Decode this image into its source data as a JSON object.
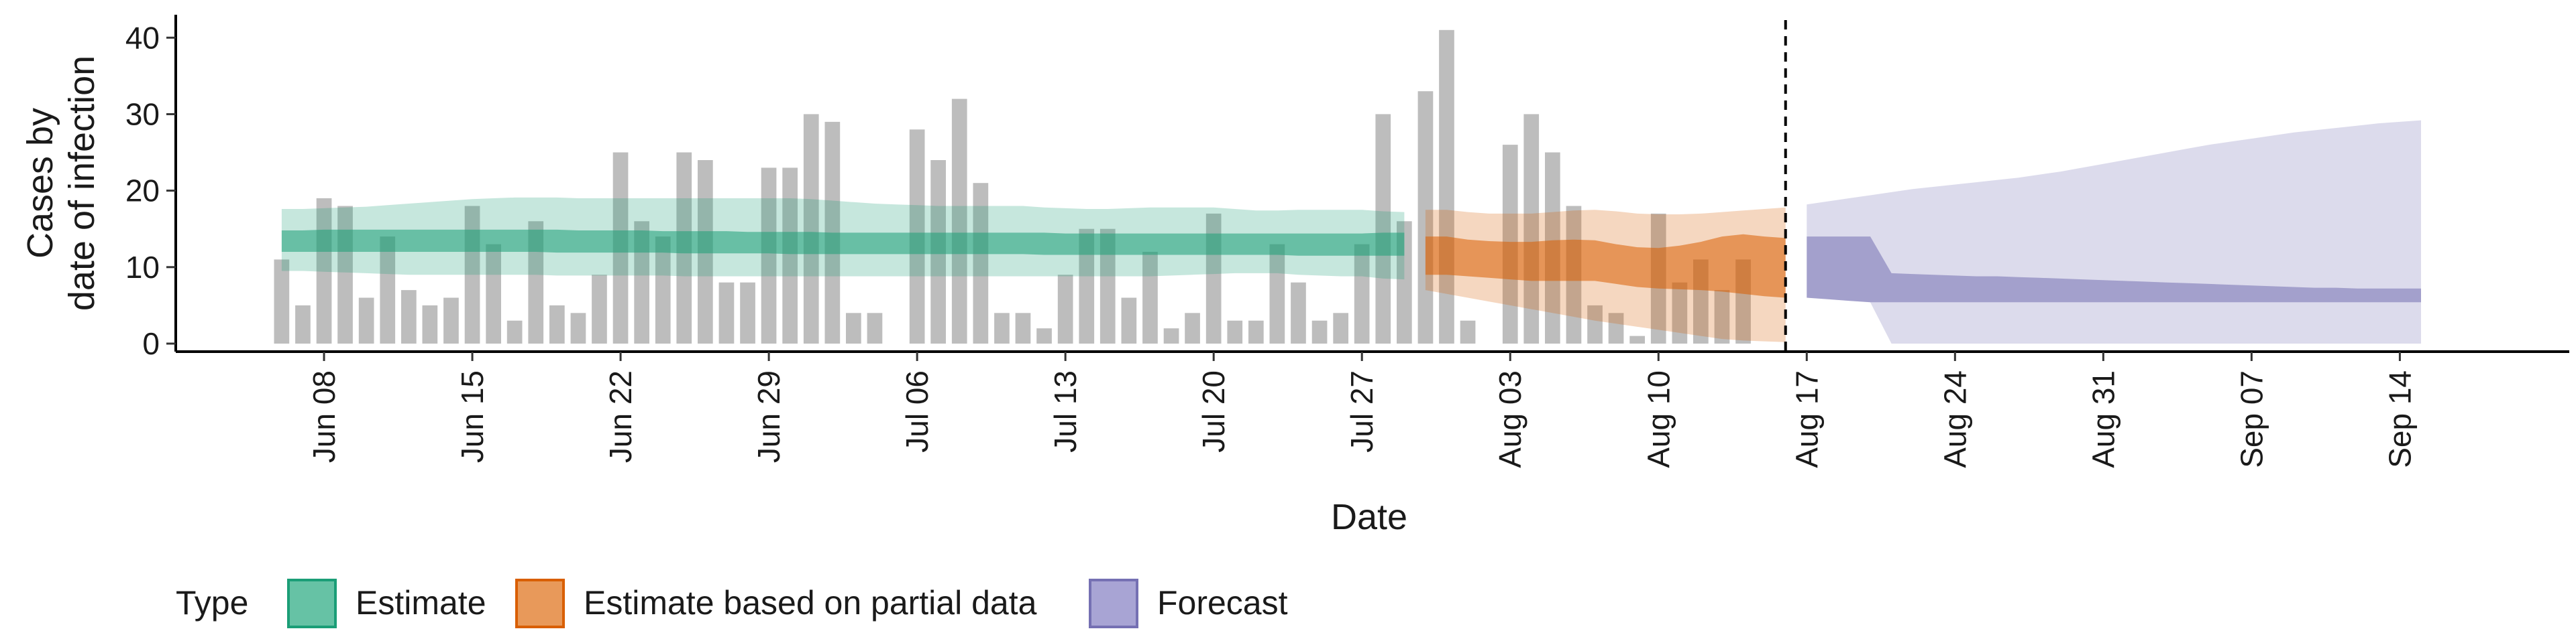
{
  "chart_data": {
    "type": "bar",
    "xlabel": "Date",
    "ylabel_lines": [
      "Cases by",
      "date of infection"
    ],
    "ylim": [
      0,
      43
    ],
    "yticks": [
      0,
      10,
      20,
      30,
      40
    ],
    "xlim": [
      "2020-06-01",
      "2020-09-22"
    ],
    "xticks": [
      {
        "date": "2020-06-08",
        "label": "Jun 08"
      },
      {
        "date": "2020-06-15",
        "label": "Jun 15"
      },
      {
        "date": "2020-06-22",
        "label": "Jun 22"
      },
      {
        "date": "2020-06-29",
        "label": "Jun 29"
      },
      {
        "date": "2020-07-06",
        "label": "Jul 06"
      },
      {
        "date": "2020-07-13",
        "label": "Jul 13"
      },
      {
        "date": "2020-07-20",
        "label": "Jul 20"
      },
      {
        "date": "2020-07-27",
        "label": "Jul 27"
      },
      {
        "date": "2020-08-03",
        "label": "Aug 03"
      },
      {
        "date": "2020-08-10",
        "label": "Aug 10"
      },
      {
        "date": "2020-08-17",
        "label": "Aug 17"
      },
      {
        "date": "2020-08-24",
        "label": "Aug 24"
      },
      {
        "date": "2020-08-31",
        "label": "Aug 31"
      },
      {
        "date": "2020-09-07",
        "label": "Sep 07"
      },
      {
        "date": "2020-09-14",
        "label": "Sep 14"
      }
    ],
    "vline_date": "2020-08-16",
    "bars": {
      "start_date": "2020-06-06",
      "color": "#bdbdbd",
      "values": [
        11,
        5,
        19,
        18,
        6,
        14,
        7,
        5,
        6,
        18,
        13,
        3,
        16,
        5,
        4,
        9,
        25,
        16,
        14,
        25,
        24,
        8,
        8,
        23,
        23,
        30,
        29,
        4,
        4,
        0,
        28,
        24,
        32,
        21,
        4,
        4,
        2,
        9,
        15,
        15,
        6,
        12,
        2,
        4,
        17,
        3,
        3,
        13,
        8,
        3,
        4,
        13,
        30,
        16,
        33,
        41,
        3,
        0,
        26,
        30,
        25,
        18,
        5,
        4,
        1,
        17,
        8,
        11,
        7,
        11
      ]
    },
    "legend": {
      "title": "Type",
      "items": [
        {
          "label": "Estimate",
          "fill": "#66c2a5",
          "stroke": "#1b9e77"
        },
        {
          "label": "Estimate based on partial data",
          "fill": "#e8995a",
          "stroke": "#d95f02"
        },
        {
          "label": "Forecast",
          "fill": "#a8a4d4",
          "stroke": "#7570b3"
        }
      ]
    },
    "series": [
      {
        "name": "Estimate",
        "color": "#1b9e77",
        "start_date": "2020-06-06",
        "outer_lower": [
          9.5,
          9.5,
          9.4,
          9.3,
          9.2,
          9.1,
          9.0,
          9.0,
          9.0,
          9.0,
          9.0,
          9.0,
          9.0,
          8.9,
          8.9,
          8.9,
          8.9,
          8.9,
          8.9,
          8.8,
          8.8,
          8.8,
          8.8,
          8.8,
          8.8,
          8.8,
          8.8,
          8.8,
          8.8,
          8.8,
          8.8,
          8.8,
          8.8,
          8.8,
          8.8,
          8.8,
          8.8,
          8.8,
          8.8,
          8.8,
          8.8,
          8.8,
          8.9,
          9.0,
          9.1,
          9.2,
          9.2,
          9.2,
          9.0,
          8.9,
          8.8,
          8.8,
          8.5,
          8.4
        ],
        "inner_lower": [
          12.0,
          12.0,
          12.0,
          12.0,
          12.0,
          12.0,
          12.0,
          12.0,
          12.0,
          12.0,
          12.0,
          12.0,
          12.0,
          11.9,
          11.9,
          11.9,
          11.9,
          11.9,
          11.9,
          11.8,
          11.8,
          11.8,
          11.8,
          11.8,
          11.7,
          11.7,
          11.7,
          11.7,
          11.7,
          11.7,
          11.7,
          11.7,
          11.7,
          11.7,
          11.7,
          11.7,
          11.6,
          11.6,
          11.6,
          11.6,
          11.6,
          11.6,
          11.6,
          11.6,
          11.6,
          11.6,
          11.6,
          11.6,
          11.5,
          11.5,
          11.5,
          11.5,
          11.5,
          11.5
        ],
        "inner_upper": [
          14.8,
          14.8,
          14.9,
          14.9,
          14.9,
          14.9,
          14.9,
          14.9,
          14.9,
          14.9,
          14.9,
          14.9,
          14.9,
          14.9,
          14.8,
          14.8,
          14.8,
          14.8,
          14.7,
          14.7,
          14.7,
          14.7,
          14.6,
          14.6,
          14.6,
          14.6,
          14.5,
          14.5,
          14.5,
          14.5,
          14.5,
          14.5,
          14.5,
          14.5,
          14.5,
          14.5,
          14.5,
          14.4,
          14.4,
          14.4,
          14.4,
          14.4,
          14.4,
          14.4,
          14.4,
          14.4,
          14.4,
          14.4,
          14.4,
          14.4,
          14.4,
          14.4,
          14.5,
          14.5
        ],
        "outer_upper": [
          17.6,
          17.6,
          17.7,
          17.8,
          17.9,
          18.1,
          18.3,
          18.5,
          18.7,
          18.9,
          19.0,
          19.1,
          19.1,
          19.1,
          19.0,
          19.0,
          19.0,
          19.0,
          19.0,
          19.0,
          19.0,
          19.0,
          19.0,
          19.0,
          19.0,
          18.9,
          18.7,
          18.5,
          18.3,
          18.2,
          18.1,
          18.0,
          18.0,
          18.0,
          18.0,
          18.0,
          17.8,
          17.7,
          17.6,
          17.6,
          17.7,
          17.8,
          17.8,
          17.8,
          17.8,
          17.6,
          17.4,
          17.4,
          17.5,
          17.5,
          17.5,
          17.5,
          17.3,
          17.2
        ]
      },
      {
        "name": "Estimate based on partial data",
        "color": "#d95f02",
        "start_date": "2020-07-30",
        "outer_lower": [
          7.0,
          6.5,
          6.0,
          5.5,
          5.0,
          4.5,
          4.0,
          3.5,
          3.0,
          2.6,
          2.2,
          1.8,
          1.4,
          1.0,
          0.6,
          0.4,
          0.3,
          0.2
        ],
        "inner_lower": [
          9.0,
          9.0,
          8.8,
          8.6,
          8.4,
          8.2,
          8.2,
          8.2,
          8.2,
          7.8,
          7.4,
          7.2,
          7.1,
          7.0,
          6.8,
          6.5,
          6.2,
          6.0
        ],
        "inner_upper": [
          14.0,
          14.0,
          13.6,
          13.4,
          13.3,
          13.3,
          13.5,
          13.6,
          13.5,
          13.0,
          12.6,
          12.5,
          12.8,
          13.3,
          14.0,
          14.3,
          14.0,
          13.8
        ],
        "outer_upper": [
          17.5,
          17.5,
          17.2,
          17.0,
          17.0,
          17.0,
          17.2,
          17.4,
          17.5,
          17.3,
          17.0,
          16.9,
          16.9,
          17.0,
          17.2,
          17.4,
          17.6,
          17.8
        ]
      },
      {
        "name": "Forecast",
        "color": "#7570b3",
        "start_date": "2020-08-17",
        "outer_lower": [
          6.0,
          5.8,
          5.6,
          5.4,
          0,
          0,
          0,
          0,
          0,
          0,
          0,
          0,
          0,
          0,
          0,
          0,
          0,
          0,
          0,
          0,
          0,
          0,
          0,
          0,
          0,
          0,
          0,
          0,
          0,
          0
        ],
        "inner_lower": [
          6.0,
          5.8,
          5.6,
          5.4,
          5.4,
          5.4,
          5.4,
          5.4,
          5.4,
          5.4,
          5.4,
          5.4,
          5.4,
          5.4,
          5.4,
          5.4,
          5.4,
          5.4,
          5.4,
          5.4,
          5.4,
          5.4,
          5.4,
          5.4,
          5.4,
          5.4,
          5.4,
          5.4,
          5.4,
          5.4
        ],
        "inner_upper": [
          14.0,
          14.0,
          14.0,
          14.0,
          9.2,
          9.1,
          9.0,
          8.9,
          8.8,
          8.8,
          8.7,
          8.6,
          8.5,
          8.4,
          8.3,
          8.2,
          8.1,
          8.0,
          7.9,
          7.8,
          7.7,
          7.6,
          7.5,
          7.4,
          7.3,
          7.3,
          7.2,
          7.2,
          7.2,
          7.2
        ],
        "outer_upper": [
          18.2,
          18.6,
          19.0,
          19.4,
          19.8,
          20.2,
          20.5,
          20.8,
          21.1,
          21.4,
          21.7,
          22.1,
          22.5,
          23.0,
          23.5,
          24.0,
          24.5,
          25.0,
          25.5,
          26.0,
          26.4,
          26.8,
          27.2,
          27.6,
          27.9,
          28.2,
          28.5,
          28.8,
          29.0,
          29.2
        ]
      }
    ]
  }
}
